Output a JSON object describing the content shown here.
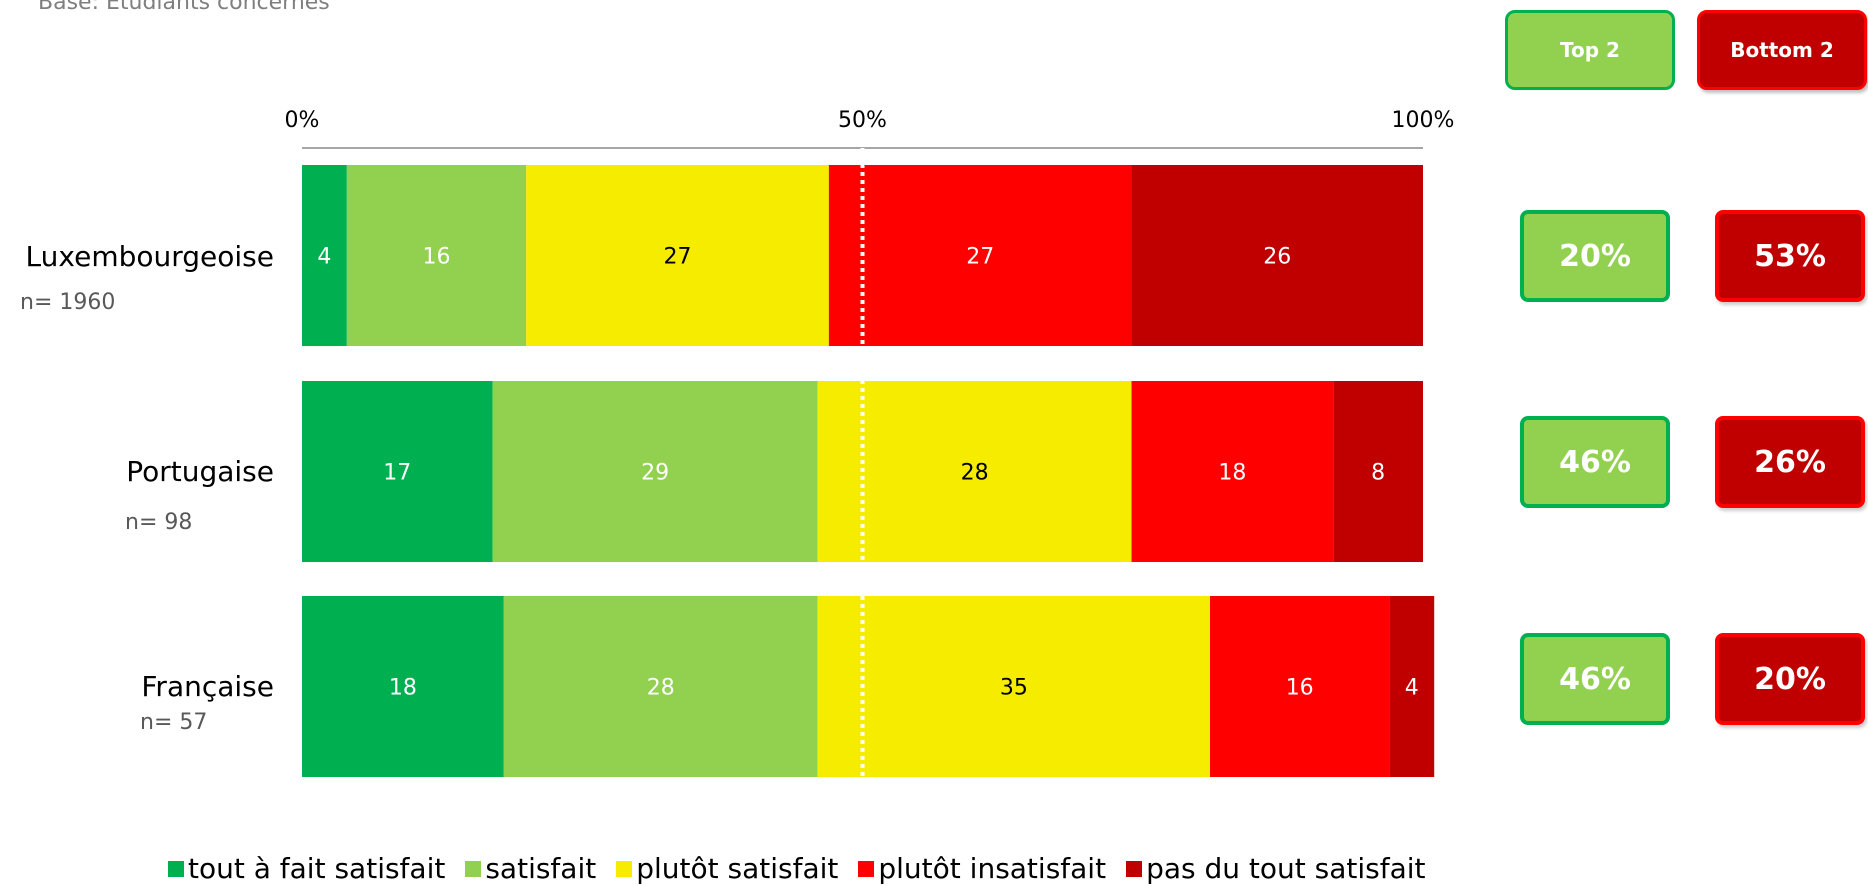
{
  "base_note": "Base: Etudiants concernés",
  "headers": {
    "top2": "Top 2",
    "bottom2": "Bottom 2"
  },
  "rows": [
    {
      "label": "Luxembourgeoise",
      "n": "n= 1960",
      "top2": "20%",
      "bottom2": "53%"
    },
    {
      "label": "Portugaise",
      "n": "n= 98",
      "top2": "46%",
      "bottom2": "26%"
    },
    {
      "label": "Française",
      "n": "n= 57",
      "top2": "46%",
      "bottom2": "20%"
    }
  ],
  "legend": [
    {
      "label": "tout à fait satisfait",
      "color": "#00b050"
    },
    {
      "label": "satisfait",
      "color": "#92d050"
    },
    {
      "label": "plutôt satisfait",
      "color": "#f5ec00"
    },
    {
      "label": "plutôt insatisfait",
      "color": "#ff0000"
    },
    {
      "label": "pas du tout satisfait",
      "color": "#c00000"
    }
  ],
  "chart_data": {
    "type": "bar",
    "orientation": "horizontal",
    "stacked": true,
    "categories": [
      "Luxembourgeoise",
      "Portugaise",
      "Française"
    ],
    "series": [
      {
        "name": "tout à fait satisfait",
        "color": "#00b050",
        "label_color": "#ffffff",
        "values": [
          4,
          17,
          18
        ]
      },
      {
        "name": "satisfait",
        "color": "#92d050",
        "label_color": "#ffffff",
        "values": [
          16,
          29,
          28
        ]
      },
      {
        "name": "plutôt satisfait",
        "color": "#f5ec00",
        "label_color": "#000000",
        "values": [
          27,
          28,
          35
        ]
      },
      {
        "name": "plutôt insatisfait",
        "color": "#ff0000",
        "label_color": "#ffffff",
        "values": [
          27,
          18,
          16
        ]
      },
      {
        "name": "pas du tout satisfait",
        "color": "#c00000",
        "label_color": "#ffffff",
        "values": [
          26,
          8,
          4
        ]
      }
    ],
    "xlim": [
      0,
      100
    ],
    "ticks": [
      "0%",
      "50%",
      "100%"
    ],
    "tick_values": [
      0,
      50,
      100
    ],
    "reference_line": 50,
    "legend_position": "bottom",
    "grid": false
  }
}
